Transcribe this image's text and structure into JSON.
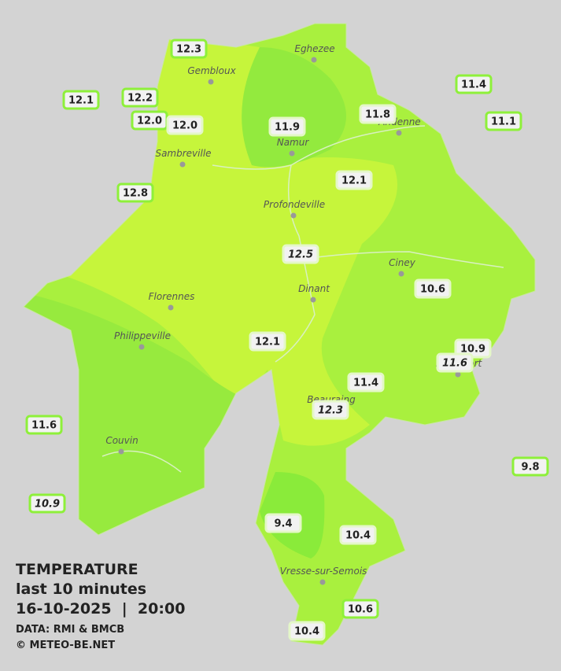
{
  "legend": {
    "title": "TEMPERATURE",
    "period": "last 10 minutes",
    "datetime": "16-10-2025  |  20:00",
    "source": "DATA: RMI & BMCB",
    "credit": "© METEO-BE.NET"
  },
  "cities": [
    "Eghezee",
    "Gembloux",
    "Andenne",
    "Namur",
    "Sambreville",
    "Profondeville",
    "Ciney",
    "Dinant",
    "Florennes",
    "Philippeville",
    "Rochefort",
    "Beauraing",
    "Couvin",
    "Vresse-sur-Semois"
  ],
  "stations": [
    {
      "value": "12.3",
      "italic": false
    },
    {
      "value": "12.1",
      "italic": false
    },
    {
      "value": "12.2",
      "italic": false
    },
    {
      "value": "12.0",
      "italic": false
    },
    {
      "value": "12.0",
      "italic": false
    },
    {
      "value": "11.9",
      "italic": false
    },
    {
      "value": "11.8",
      "italic": false
    },
    {
      "value": "11.4",
      "italic": false
    },
    {
      "value": "11.1",
      "italic": false
    },
    {
      "value": "12.8",
      "italic": false
    },
    {
      "value": "12.1",
      "italic": false
    },
    {
      "value": "12.5",
      "italic": true
    },
    {
      "value": "10.6",
      "italic": false
    },
    {
      "value": "12.1",
      "italic": false
    },
    {
      "value": "10.9",
      "italic": false
    },
    {
      "value": "11.6",
      "italic": true
    },
    {
      "value": "11.4",
      "italic": false
    },
    {
      "value": "12.3",
      "italic": true
    },
    {
      "value": "11.6",
      "italic": false
    },
    {
      "value": "9.8",
      "italic": false
    },
    {
      "value": "10.9",
      "italic": true
    },
    {
      "value": "9.4",
      "italic": false
    },
    {
      "value": "10.4",
      "italic": false
    },
    {
      "value": "10.6",
      "italic": false
    },
    {
      "value": "10.4",
      "italic": false
    }
  ]
}
